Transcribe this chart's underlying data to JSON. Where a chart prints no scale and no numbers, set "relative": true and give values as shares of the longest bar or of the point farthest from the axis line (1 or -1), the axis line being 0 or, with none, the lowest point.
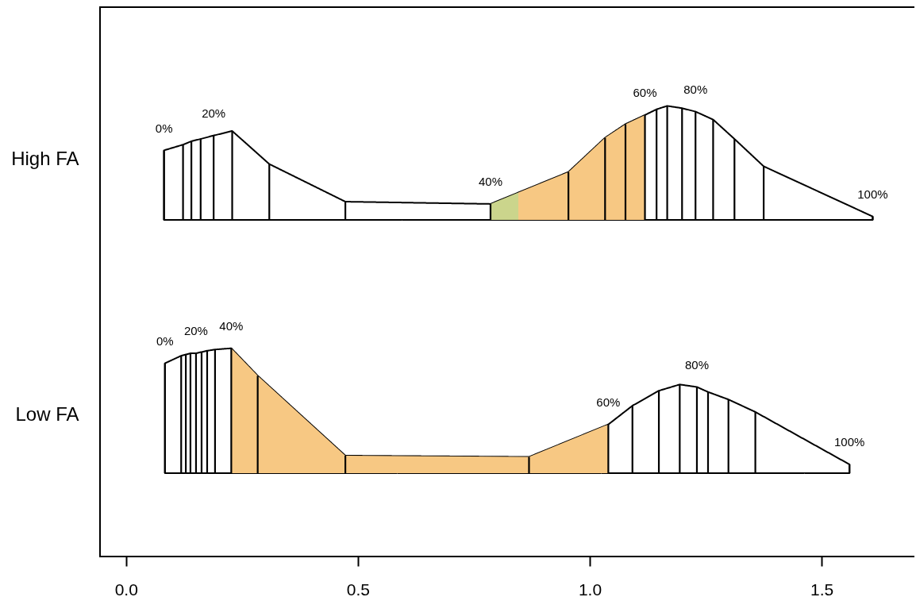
{
  "chart_data": [
    {
      "type": "area",
      "relative": true,
      "ylabel": "High FA",
      "xlim": [
        -0.056,
        1.7
      ],
      "tick_labels": false,
      "series": [
        {
          "color": "#ffffff",
          "line_style": "solid",
          "x": [
            0.082,
            0.123,
            0.141,
            0.161,
            0.189,
            0.229,
            0.309,
            0.473,
            0.786,
            0.954,
            1.033,
            1.077,
            1.119,
            1.144,
            1.167,
            1.199,
            1.228,
            1.266,
            1.312,
            1.375,
            1.61
          ],
          "values": [
            0.61,
            0.66,
            0.69,
            0.71,
            0.74,
            0.78,
            0.49,
            0.16,
            0.14,
            0.42,
            0.72,
            0.84,
            0.92,
            0.97,
            1.0,
            0.98,
            0.95,
            0.88,
            0.71,
            0.47,
            0.03
          ]
        },
        {
          "color": "#cbd58c",
          "x": [
            0.786,
            0.846
          ],
          "values": [
            0.14,
            0.24
          ]
        },
        {
          "color": "#f7c883",
          "x": [
            0.846,
            0.954,
            1.033,
            1.077,
            1.119
          ],
          "values": [
            0.24,
            0.42,
            0.72,
            0.84,
            0.92
          ]
        },
        {
          "type": "bar",
          "color": "#000000",
          "x": [
            0.082,
            0.123,
            0.141,
            0.161,
            0.189,
            0.229,
            0.309,
            0.473,
            0.786,
            0.954,
            1.033,
            1.077,
            1.119,
            1.144,
            1.167,
            1.199,
            1.228,
            1.266,
            1.312,
            1.375,
            1.61
          ],
          "values": [
            0.61,
            0.66,
            0.69,
            0.71,
            0.74,
            0.78,
            0.49,
            0.16,
            0.14,
            0.42,
            0.72,
            0.84,
            0.92,
            0.97,
            1.0,
            0.98,
            0.95,
            0.88,
            0.71,
            0.47,
            0.03
          ]
        }
      ],
      "annotations": [
        {
          "text": "0%",
          "x": 0.082,
          "y": 0.61
        },
        {
          "text": "20%",
          "x": 0.189,
          "y": 0.74
        },
        {
          "text": "40%",
          "x": 0.786,
          "y": 0.14
        },
        {
          "text": "60%",
          "x": 1.119,
          "y": 0.92
        },
        {
          "text": "80%",
          "x": 1.228,
          "y": 0.95
        },
        {
          "text": "100%",
          "x": 1.61,
          "y": 0.03
        }
      ]
    },
    {
      "type": "area",
      "relative": true,
      "ylabel": "Low FA",
      "xlim": [
        -0.056,
        1.7
      ],
      "xticks": [
        {
          "value": 0,
          "label": "0.0"
        },
        0.5,
        {
          "value": 1,
          "label": "1.0"
        },
        1.5
      ],
      "tick_labels": "x",
      "series": [
        {
          "color": "#ffffff",
          "line_style": "solid",
          "x": [
            0.084,
            0.119,
            0.129,
            0.139,
            0.151,
            0.163,
            0.175,
            0.192,
            0.227,
            0.284,
            0.473,
            0.869,
            1.04,
            1.092,
            1.149,
            1.194,
            1.231,
            1.255,
            1.299,
            1.357,
            1.56
          ],
          "values": [
            0.88,
            0.94,
            0.95,
            0.96,
            0.96,
            0.97,
            0.98,
            0.99,
            1.0,
            0.78,
            0.14,
            0.13,
            0.39,
            0.54,
            0.66,
            0.71,
            0.69,
            0.65,
            0.59,
            0.49,
            0.07
          ]
        },
        {
          "color": "#f7c883",
          "x": [
            0.227,
            0.284,
            0.473,
            0.869,
            1.04
          ],
          "values": [
            1.0,
            0.78,
            0.14,
            0.13,
            0.39
          ]
        },
        {
          "type": "bar",
          "color": "#000000",
          "x": [
            0.084,
            0.119,
            0.129,
            0.139,
            0.151,
            0.163,
            0.175,
            0.192,
            0.227,
            0.284,
            0.473,
            0.869,
            1.04,
            1.092,
            1.149,
            1.194,
            1.231,
            1.255,
            1.299,
            1.357,
            1.56
          ],
          "values": [
            0.88,
            0.94,
            0.95,
            0.96,
            0.96,
            0.97,
            0.98,
            0.99,
            1.0,
            0.78,
            0.14,
            0.13,
            0.39,
            0.54,
            0.66,
            0.71,
            0.69,
            0.65,
            0.59,
            0.49,
            0.07
          ]
        }
      ],
      "annotations": [
        {
          "text": "0%",
          "x": 0.084,
          "y": 0.88
        },
        {
          "text": "20%",
          "x": 0.151,
          "y": 0.96
        },
        {
          "text": "40%",
          "x": 0.227,
          "y": 1.0
        },
        {
          "text": "60%",
          "x": 1.04,
          "y": 0.39
        },
        {
          "text": "80%",
          "x": 1.231,
          "y": 0.69
        },
        {
          "text": "100%",
          "x": 1.56,
          "y": 0.07
        }
      ]
    }
  ]
}
